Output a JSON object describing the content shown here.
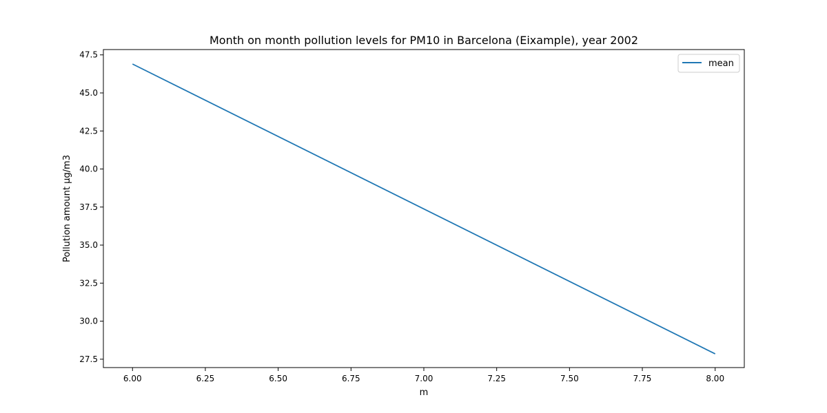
{
  "chart_data": {
    "type": "line",
    "title": "Month on month pollution levels for PM10 in Barcelona (Eixample), year 2002",
    "xlabel": "m",
    "ylabel": "Pollution amount µg/m3",
    "xlim": [
      5.9,
      8.1
    ],
    "ylim": [
      26.95,
      47.85
    ],
    "xticks": [
      6.0,
      6.25,
      6.5,
      6.75,
      7.0,
      7.25,
      7.5,
      7.75,
      8.0
    ],
    "xtick_labels": [
      "6.00",
      "6.25",
      "6.50",
      "6.75",
      "7.00",
      "7.25",
      "7.50",
      "7.75",
      "8.00"
    ],
    "yticks": [
      27.5,
      30.0,
      32.5,
      35.0,
      37.5,
      40.0,
      42.5,
      45.0,
      47.5
    ],
    "ytick_labels": [
      "27.5",
      "30.0",
      "32.5",
      "35.0",
      "37.5",
      "40.0",
      "42.5",
      "45.0",
      "47.5"
    ],
    "grid": false,
    "legend_position": "top-right",
    "series": [
      {
        "name": "mean",
        "color": "#1f77b4",
        "x": [
          6,
          8
        ],
        "y": [
          46.9,
          27.85
        ]
      }
    ]
  }
}
